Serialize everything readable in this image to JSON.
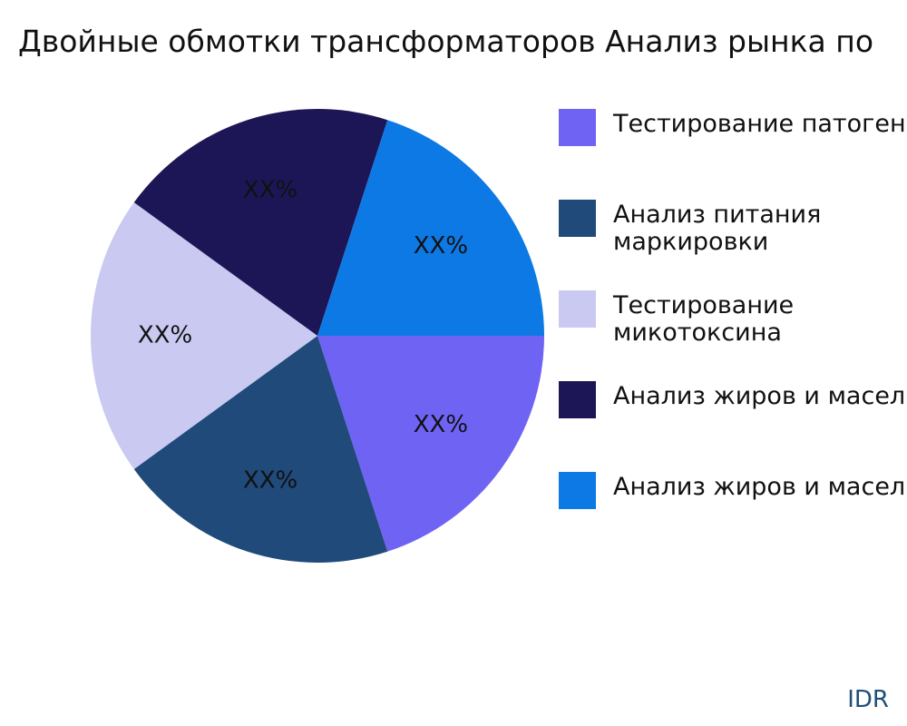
{
  "chart_data": {
    "type": "pie",
    "title": "Двойные обмотки трансформаторов Анализ рынка по",
    "slices": [
      {
        "name": "Тестирование патогенов",
        "value": 20,
        "label": "XX%",
        "color": "#6f63f4"
      },
      {
        "name": "Анализ питания маркировки",
        "value": 20,
        "label": "XX%",
        "color": "#1f4a7a"
      },
      {
        "name": "Тестирование микотоксина",
        "value": 20,
        "label": "XX%",
        "color": "#c9c9f1"
      },
      {
        "name": "Анализ жиров и масел",
        "value": 20,
        "label": "XX%",
        "color": "#1c1656"
      },
      {
        "name": "Анализ жиров и масел",
        "value": 20,
        "label": "XX%",
        "color": "#0c79e4"
      }
    ],
    "legend_position": "right"
  },
  "legend_display": [
    "Тестирование патогенов",
    "Анализ питания маркировки",
    "Тестирование микотоксина",
    "Анализ жиров и масел",
    "Анализ жиров и масел"
  ],
  "watermark": "IDR"
}
